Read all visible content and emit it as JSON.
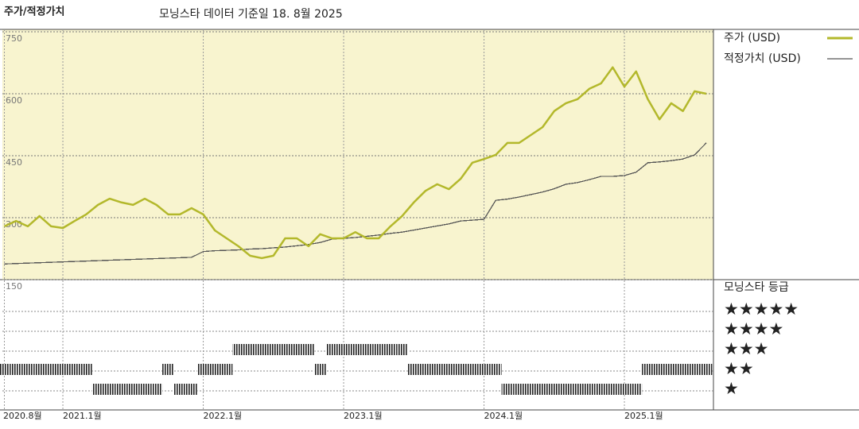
{
  "chart_data": {
    "type": "line",
    "title": "주가/적정가치",
    "subtitle": "모닝스타 데이터 기준일 18. 8월 2025",
    "categories": [
      "2020.8월",
      null,
      null,
      null,
      null,
      "2021.1월",
      null,
      null,
      null,
      null,
      null,
      null,
      null,
      null,
      null,
      null,
      null,
      "2022.1월",
      null,
      null,
      null,
      null,
      null,
      null,
      null,
      null,
      null,
      null,
      null,
      "2023.1월",
      null,
      null,
      null,
      null,
      null,
      null,
      null,
      null,
      null,
      null,
      null,
      "2024.1월",
      null,
      null,
      null,
      null,
      null,
      null,
      null,
      null,
      null,
      null,
      null,
      "2025.1월",
      null,
      null,
      null,
      null,
      null,
      null,
      null
    ],
    "series": [
      {
        "name": "주가 (USD)",
        "color": "#b3b82b",
        "values": [
          279,
          292,
          279,
          304,
          279,
          275,
          292,
          308,
          331,
          346,
          337,
          331,
          346,
          331,
          308,
          308,
          323,
          308,
          269,
          250,
          231,
          208,
          202,
          208,
          250,
          250,
          231,
          260,
          250,
          250,
          265,
          250,
          250,
          279,
          304,
          337,
          365,
          381,
          369,
          394,
          433,
          442,
          452,
          481,
          481,
          500,
          519,
          558,
          577,
          587,
          612,
          625,
          664,
          617,
          654,
          587,
          538,
          577,
          558,
          606,
          600
        ]
      },
      {
        "name": "적정가치 (USD)",
        "color": "#555555",
        "values": [
          188,
          189,
          190,
          191,
          192,
          193,
          194,
          195,
          196,
          197,
          198,
          199,
          200,
          201,
          202,
          203,
          204,
          218,
          220,
          221,
          222,
          224,
          225,
          227,
          229,
          232,
          235,
          240,
          248,
          250,
          252,
          255,
          258,
          262,
          265,
          270,
          275,
          280,
          285,
          292,
          294,
          296,
          342,
          345,
          350,
          356,
          362,
          370,
          381,
          385,
          392,
          400,
          400,
          402,
          410,
          433,
          435,
          438,
          442,
          452,
          481
        ]
      }
    ],
    "ylim": [
      150,
      750
    ],
    "yticks": [
      150,
      300,
      450,
      600,
      750
    ],
    "grid": true,
    "rating": {
      "name": "모닝스타 등급",
      "levels": [
        {
          "value": 5,
          "label": "★★★★★"
        },
        {
          "value": 4,
          "label": "★★★★"
        },
        {
          "value": 3,
          "label": "★★★"
        },
        {
          "value": 2,
          "label": "★★"
        },
        {
          "value": 1,
          "label": "★"
        }
      ],
      "values": [
        2,
        2,
        2,
        2,
        2,
        2,
        2,
        2,
        1,
        1,
        1,
        1,
        1,
        1,
        2,
        1,
        1,
        2,
        2,
        2,
        3,
        3,
        3,
        3,
        3,
        3,
        3,
        2,
        3,
        3,
        3,
        3,
        3,
        3,
        3,
        2,
        2,
        2,
        2,
        2,
        2,
        2,
        2,
        1,
        1,
        1,
        1,
        1,
        1,
        1,
        1,
        1,
        1,
        1,
        1,
        2,
        2,
        2,
        2,
        2,
        2
      ]
    }
  }
}
